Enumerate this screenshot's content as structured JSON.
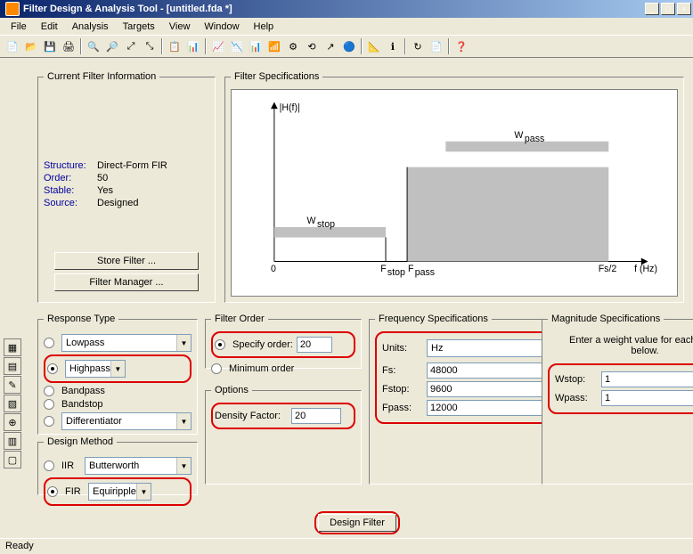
{
  "window": {
    "title": "Filter Design & Analysis Tool  -  [untitled.fda *]"
  },
  "menu": [
    "File",
    "Edit",
    "Analysis",
    "Targets",
    "View",
    "Window",
    "Help"
  ],
  "toolbar_icons": [
    "📄",
    "📂",
    "💾",
    "🖨",
    "|",
    "🔍",
    "🔎",
    "⤢",
    "⤡",
    "|",
    "📋",
    "📊",
    "|",
    "📈",
    "📉",
    "📊",
    "📶",
    "⚙",
    "⟲",
    "↗",
    "🔵",
    "|",
    "📐",
    "ℹ",
    "|",
    "↻",
    "📄",
    "|",
    "❓"
  ],
  "side_icons": [
    "▦",
    "▤",
    "✎",
    "▧",
    "⊕",
    "▥",
    "▢"
  ],
  "cfi": {
    "legend": "Current Filter Information",
    "rows": [
      {
        "label": "Structure:",
        "value": "Direct-Form FIR"
      },
      {
        "label": "Order:",
        "value": "50"
      },
      {
        "label": "Stable:",
        "value": "Yes"
      },
      {
        "label": "Source:",
        "value": "Designed"
      }
    ],
    "store_btn": "Store Filter ...",
    "manager_btn": "Filter Manager ..."
  },
  "fspec": {
    "legend": "Filter Specifications",
    "ylabel": "|H(f)|",
    "xlabel": "f (Hz)",
    "wpass": "W",
    "wpass_sub": "pass",
    "wstop": "W",
    "wstop_sub": "stop",
    "fstop": "F",
    "fstop_sub": "stop",
    "fpass": "F",
    "fpass_sub": "pass",
    "fs2": "Fs/2",
    "zero": "0",
    "colors": {
      "band": "#c0c0c0",
      "axis": "#000000",
      "bg": "#ffffff"
    }
  },
  "response": {
    "legend": "Response Type",
    "items": [
      {
        "type": "radio-drop",
        "sel": false,
        "val": "Lowpass",
        "hl": false
      },
      {
        "type": "radio-drop",
        "sel": true,
        "val": "Highpass",
        "hl": true
      },
      {
        "type": "radio",
        "sel": false,
        "val": "Bandpass"
      },
      {
        "type": "radio",
        "sel": false,
        "val": "Bandstop"
      },
      {
        "type": "radio-drop",
        "sel": false,
        "val": "Differentiator",
        "hl": false
      }
    ]
  },
  "method": {
    "legend": "Design Method",
    "items": [
      {
        "lbl": "IIR",
        "sel": false,
        "val": "Butterworth",
        "hl": false
      },
      {
        "lbl": "FIR",
        "sel": true,
        "val": "Equiripple",
        "hl": true
      }
    ]
  },
  "forder": {
    "legend": "Filter Order",
    "specify": "Specify order:",
    "specify_val": "20",
    "minimum": "Minimum order"
  },
  "opts": {
    "legend": "Options",
    "density": "Density Factor:",
    "density_val": "20"
  },
  "freq": {
    "legend": "Frequency Specifications",
    "units_lbl": "Units:",
    "units_val": "Hz",
    "rows": [
      {
        "label": "Fs:",
        "value": "48000"
      },
      {
        "label": "Fstop:",
        "value": "9600"
      },
      {
        "label": "Fpass:",
        "value": "12000"
      }
    ]
  },
  "mag": {
    "legend": "Magnitude Specifications",
    "hint": "Enter a weight value for each band below.",
    "rows": [
      {
        "label": "Wstop:",
        "value": "1"
      },
      {
        "label": "Wpass:",
        "value": "1"
      }
    ]
  },
  "design_btn": "Design Filter",
  "status": "Ready"
}
